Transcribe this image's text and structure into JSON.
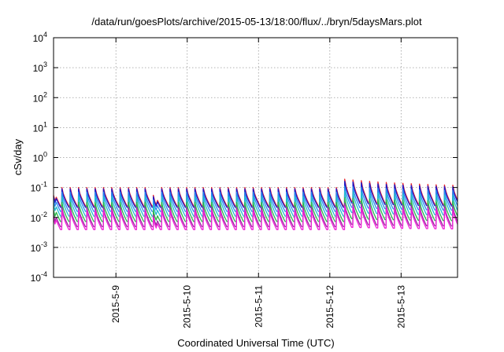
{
  "chart_data": {
    "type": "line",
    "title": "/data/run/goesPlots/archive/2015-05-13/18:00/flux/../bryn/5daysMars.plot",
    "xlabel": "Coordinated Universal Time (UTC)",
    "ylabel": "cSv/day",
    "yscale": "log",
    "ylim": [
      0.0001,
      10000
    ],
    "xlim": [
      "2015-05-08T03:00",
      "2015-05-13T19:00"
    ],
    "grid": true,
    "y_ticks": [
      {
        "base": "10",
        "exp": "-4"
      },
      {
        "base": "10",
        "exp": "-3"
      },
      {
        "base": "10",
        "exp": "-2"
      },
      {
        "base": "10",
        "exp": "-1"
      },
      {
        "base": "10",
        "exp": "0"
      },
      {
        "base": "10",
        "exp": "1"
      },
      {
        "base": "10",
        "exp": "2"
      },
      {
        "base": "10",
        "exp": "3"
      },
      {
        "base": "10",
        "exp": "4"
      }
    ],
    "x_ticks": [
      "2015-5-9",
      "2015-5-10",
      "2015-5-11",
      "2015-5-12",
      "2015-5-13"
    ],
    "sawtooth_period_hours": 2.8,
    "series": [
      {
        "color": "#e8202a",
        "peaks": [
          0.1,
          0.19
        ],
        "troughs": [
          0.02,
          0.028
        ]
      },
      {
        "color": "#1a1acc",
        "peaks": [
          0.09,
          0.16
        ],
        "troughs": [
          0.018,
          0.025
        ]
      },
      {
        "color": "#2a8af0",
        "peaks": [
          0.07,
          0.11
        ],
        "troughs": [
          0.013,
          0.018
        ]
      },
      {
        "color": "#1fbcd0",
        "peaks": [
          0.05,
          0.075
        ],
        "troughs": [
          0.009,
          0.012
        ]
      },
      {
        "color": "#2ab84a",
        "peaks": [
          0.032,
          0.045
        ],
        "troughs": [
          0.006,
          0.0075
        ]
      },
      {
        "color": "#9a2aa0",
        "peaks": [
          0.022,
          0.03
        ],
        "troughs": [
          0.004,
          0.0048
        ]
      },
      {
        "color": "#f020d8",
        "peaks": [
          0.018,
          0.024
        ],
        "troughs": [
          0.0032,
          0.0038
        ]
      }
    ]
  }
}
